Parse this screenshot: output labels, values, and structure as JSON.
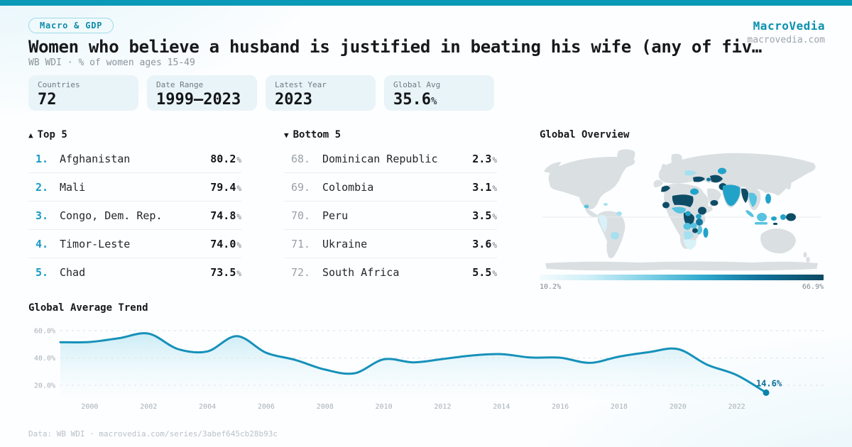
{
  "units": {
    "percent": "%"
  },
  "accent_color": "#0a99b6",
  "header": {
    "category": "Macro & GDP",
    "title": "Women who believe a husband is justified in beating his wife (any of fiv…",
    "subtitle": "WB WDI · % of women ages 15-49",
    "brand": "MacroVedia",
    "brand_url": "macrovedia.com"
  },
  "stats": [
    {
      "label": "Countries",
      "value": "72"
    },
    {
      "label": "Date Range",
      "value": "1999—2023"
    },
    {
      "label": "Latest Year",
      "value": "2023"
    },
    {
      "label": "Global Avg",
      "value": "35.6",
      "suffix": "%"
    }
  ],
  "top5": {
    "icon": "▲",
    "title": "Top 5",
    "rows": [
      {
        "rank": "1.",
        "name": "Afghanistan",
        "value": "80.2"
      },
      {
        "rank": "2.",
        "name": "Mali",
        "value": "79.4"
      },
      {
        "rank": "3.",
        "name": "Congo, Dem. Rep.",
        "value": "74.8"
      },
      {
        "rank": "4.",
        "name": "Timor-Leste",
        "value": "74.0"
      },
      {
        "rank": "5.",
        "name": "Chad",
        "value": "73.5"
      }
    ]
  },
  "bottom5": {
    "icon": "▼",
    "title": "Bottom 5",
    "rows": [
      {
        "rank": "68.",
        "name": "Dominican Republic",
        "value": "2.3"
      },
      {
        "rank": "69.",
        "name": "Colombia",
        "value": "3.1"
      },
      {
        "rank": "70.",
        "name": "Peru",
        "value": "3.5"
      },
      {
        "rank": "71.",
        "name": "Ukraine",
        "value": "3.6"
      },
      {
        "rank": "72.",
        "name": "South Africa",
        "value": "5.5"
      }
    ]
  },
  "map": {
    "title": "Global Overview",
    "type": "choropleth",
    "scale_min": "10.2%",
    "scale_max": "66.9%",
    "scale_colors": [
      "#f3fbfd",
      "#0d4a63"
    ]
  },
  "chart_data": {
    "type": "line",
    "title": "Global Average Trend",
    "x": [
      1999,
      2000,
      2001,
      2002,
      2003,
      2004,
      2005,
      2006,
      2007,
      2008,
      2009,
      2010,
      2011,
      2012,
      2013,
      2014,
      2015,
      2016,
      2017,
      2018,
      2019,
      2020,
      2021,
      2022,
      2023
    ],
    "values": [
      51.5,
      51.7,
      54.5,
      57.8,
      46.5,
      44.8,
      56.0,
      43.8,
      38.5,
      31.5,
      28.8,
      39.0,
      36.8,
      39.2,
      41.8,
      42.8,
      40.3,
      40.2,
      36.4,
      41.0,
      44.2,
      46.5,
      35.0,
      27.5,
      14.6
    ],
    "yticks": [
      20,
      40,
      60
    ],
    "ytick_labels": [
      "20.0%",
      "40.0%",
      "60.0%"
    ],
    "xticks": [
      2000,
      2002,
      2004,
      2006,
      2008,
      2010,
      2012,
      2014,
      2016,
      2018,
      2020,
      2022
    ],
    "ylim": [
      0,
      65
    ],
    "grid": "dashed-horizontal",
    "line_color": "#1691ba",
    "end_label": "14.6%"
  },
  "footer": {
    "text": "Data: WB WDI · macrovedia.com/series/3abef645cb28b93c"
  }
}
